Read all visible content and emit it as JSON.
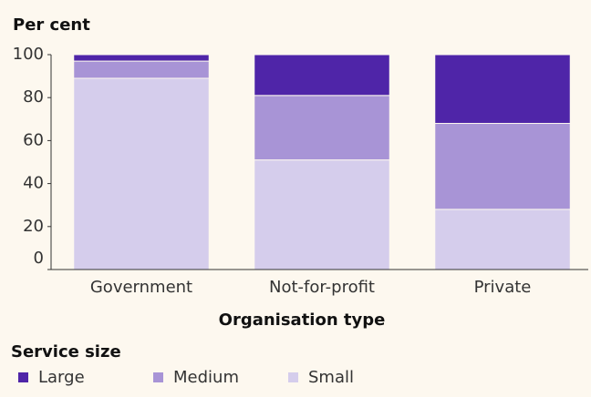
{
  "chart_data": {
    "type": "stacked-bar",
    "title": "Per cent",
    "xlabel": "Organisation type",
    "legend_title": "Service size",
    "categories": [
      "Government",
      "Not-for-profit",
      "Private"
    ],
    "series": [
      {
        "name": "Large",
        "color": "#4f25a8",
        "values": [
          3,
          19,
          32
        ]
      },
      {
        "name": "Medium",
        "color": "#a894d6",
        "values": [
          8,
          30,
          40
        ]
      },
      {
        "name": "Small",
        "color": "#d5cdec",
        "values": [
          89,
          51,
          28
        ]
      }
    ],
    "ylim": [
      0,
      100
    ],
    "yticks": [
      0,
      20,
      40,
      60,
      80,
      100
    ],
    "legend": "bottom"
  }
}
